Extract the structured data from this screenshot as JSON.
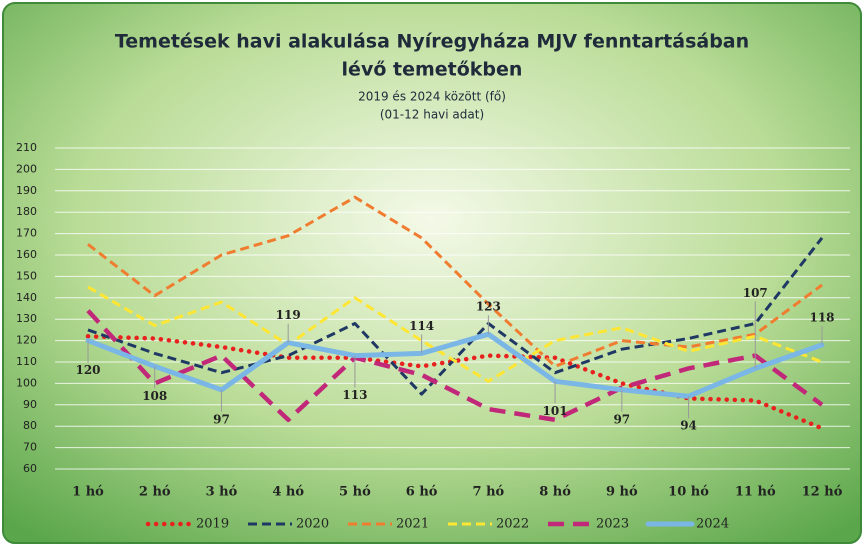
{
  "chart_data": {
    "type": "line",
    "title": [
      "Temetések havi alakulása Nyíregyháza MJV fenntartásában",
      "lévő temetőkben"
    ],
    "subtitle": [
      "2019 és 2024 között (fő)",
      "(01-12 havi adat)"
    ],
    "categories": [
      "1 hó",
      "2 hó",
      "3 hó",
      "4 hó",
      "5 hó",
      "6 hó",
      "7 hó",
      "8 hó",
      "9 hó",
      "10 hó",
      "11 hó",
      "12 hó"
    ],
    "ylim": [
      60,
      210
    ],
    "yticks": [
      60,
      70,
      80,
      90,
      100,
      110,
      120,
      130,
      140,
      150,
      160,
      170,
      180,
      190,
      200,
      210
    ],
    "grid": true,
    "series": [
      {
        "name": "2019",
        "color": "#e8201e",
        "values": [
          122,
          121,
          117,
          112,
          112,
          108,
          113,
          112,
          100,
          93,
          92,
          79
        ]
      },
      {
        "name": "2020",
        "color": "#1f3864",
        "values": [
          125,
          114,
          105,
          113,
          128,
          95,
          128,
          105,
          116,
          121,
          128,
          168
        ]
      },
      {
        "name": "2021",
        "color": "#f07c30",
        "values": [
          165,
          141,
          160,
          169,
          187,
          168,
          137,
          108,
          120,
          117,
          123,
          146
        ]
      },
      {
        "name": "2022",
        "color": "#ffe633",
        "values": [
          145,
          127,
          138,
          118,
          140,
          120,
          101,
          120,
          126,
          115,
          122,
          110
        ]
      },
      {
        "name": "2023",
        "color": "#c2287a",
        "values": [
          134,
          100,
          113,
          83,
          112,
          104,
          88,
          83,
          98,
          107,
          113,
          90
        ]
      },
      {
        "name": "2024",
        "color": "#7ab6e6",
        "values": [
          120,
          108,
          97,
          119,
          113,
          114,
          123,
          101,
          97,
          94,
          107,
          118
        ],
        "data_labels": true
      }
    ]
  }
}
